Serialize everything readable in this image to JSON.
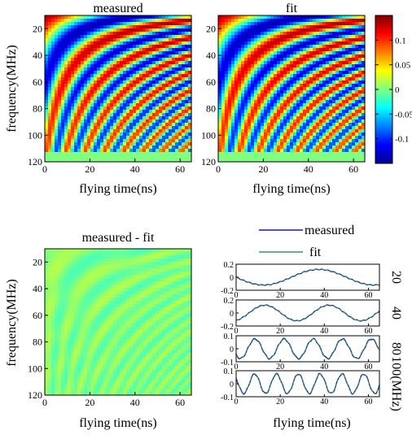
{
  "figure": {
    "heatmap_titles": [
      "measured",
      "fit",
      "measured - fit"
    ],
    "ylabel": "frequency(MHz)",
    "xlabel": "flying time(ns)",
    "colorbar_ticks": [
      "0.1",
      "0.05",
      "0",
      "-0.05",
      "-0.1"
    ],
    "legend": [
      "measured",
      "fit"
    ],
    "line_row_labels": [
      "20",
      "40",
      "80",
      "100(MHz)"
    ]
  },
  "chart_data": [
    {
      "type": "heatmap",
      "title": "measured",
      "xlabel": "flying time(ns)",
      "ylabel": "frequency(MHz)",
      "x_ticks": [
        0,
        20,
        40,
        60
      ],
      "y_ticks": [
        20,
        40,
        60,
        80,
        100,
        120
      ],
      "xlim": [
        0,
        65
      ],
      "ylim": [
        10,
        120
      ],
      "y_reversed": true,
      "colormap": "jet",
      "clim": [
        -0.15,
        0.15
      ]
    },
    {
      "type": "heatmap",
      "title": "fit",
      "xlabel": "flying time(ns)",
      "x_ticks": [
        0,
        20,
        40,
        60
      ],
      "y_ticks": [
        20,
        40,
        60,
        80,
        100,
        120
      ],
      "xlim": [
        0,
        65
      ],
      "ylim": [
        10,
        120
      ],
      "y_reversed": true,
      "colormap": "jet",
      "clim": [
        -0.15,
        0.15
      ]
    },
    {
      "type": "heatmap",
      "title": "measured - fit",
      "xlabel": "flying time(ns)",
      "ylabel": "frequency(MHz)",
      "x_ticks": [
        0,
        20,
        40,
        60
      ],
      "y_ticks": [
        20,
        40,
        60,
        80,
        100,
        120
      ],
      "xlim": [
        0,
        65
      ],
      "ylim": [
        10,
        120
      ],
      "y_reversed": true,
      "colormap": "jet",
      "clim": [
        -0.15,
        0.15
      ]
    },
    {
      "type": "line",
      "xlabel": "flying time(ns)",
      "legend": [
        "measured",
        "fit"
      ],
      "series_colors": {
        "measured": "#1a1aa8",
        "fit": "#2e9e5a"
      },
      "panels": [
        {
          "label": "20",
          "y_ticks": [
            0.2,
            0,
            -0.2
          ],
          "ylim": [
            -0.2,
            0.2
          ],
          "amplitude": 0.12,
          "period_ns": 50,
          "phase": 0.25
        },
        {
          "label": "40",
          "y_ticks": [
            0.2,
            0,
            -0.2
          ],
          "ylim": [
            -0.2,
            0.2
          ],
          "amplitude": 0.12,
          "period_ns": 29,
          "phase": 0.55
        },
        {
          "label": "80",
          "y_ticks": [
            0.1,
            0,
            -0.1
          ],
          "ylim": [
            -0.1,
            0.1
          ],
          "amplitude": 0.075,
          "period_ns": 13.2,
          "phase": 0.35
        },
        {
          "label": "100(MHz)",
          "y_ticks": [
            0.1,
            0,
            -0.1
          ],
          "ylim": [
            -0.1,
            0.1
          ],
          "amplitude": 0.075,
          "period_ns": 9.9,
          "phase": 0.15
        }
      ],
      "x_ticks": [
        0,
        20,
        40,
        60
      ],
      "xlim": [
        0,
        65
      ]
    }
  ]
}
